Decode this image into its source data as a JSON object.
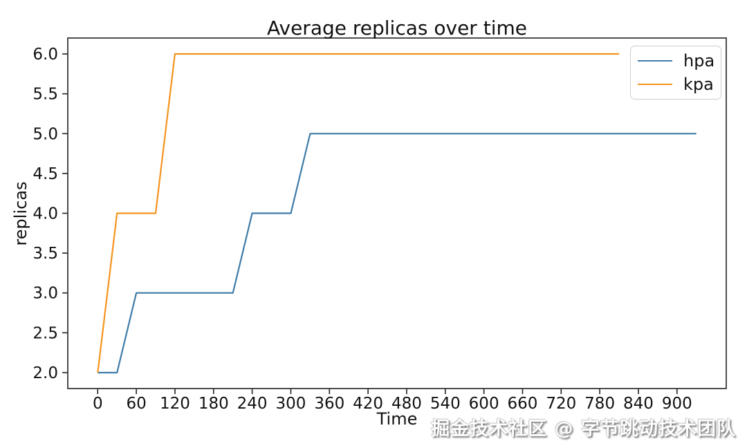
{
  "figure": {
    "background": "#ffffff"
  },
  "watermark": {
    "text": "掘金技术社区 @ 字节跳动技术团队",
    "color": "#fdfdfd",
    "shadow_color": "#6e6e6e"
  },
  "chart_data": {
    "type": "line",
    "title": "Average replicas over time",
    "xlabel": "Time",
    "ylabel": "replicas",
    "xlim": [
      -46.5,
      976.5
    ],
    "ylim": [
      1.8,
      6.2
    ],
    "grid": false,
    "legend_position": "upper right",
    "axis_color": "#2e2e2e",
    "tick_label_color": "#111111",
    "xticks": [
      0,
      60,
      120,
      180,
      240,
      300,
      360,
      420,
      480,
      540,
      600,
      660,
      720,
      780,
      840,
      900
    ],
    "xtick_labels": [
      "0",
      "60",
      "120",
      "180",
      "240",
      "300",
      "360",
      "420",
      "480",
      "540",
      "600",
      "660",
      "720",
      "780",
      "840",
      "900"
    ],
    "yticks": [
      2.0,
      2.5,
      3.0,
      3.5,
      4.0,
      4.5,
      5.0,
      5.5,
      6.0
    ],
    "ytick_labels": [
      "2.0",
      "2.5",
      "3.0",
      "3.5",
      "4.0",
      "4.5",
      "5.0",
      "5.5",
      "6.0"
    ],
    "series": [
      {
        "name": "hpa",
        "color": "#3d7ba6",
        "points": [
          [
            0,
            2
          ],
          [
            30,
            2
          ],
          [
            60,
            3
          ],
          [
            210,
            3
          ],
          [
            240,
            4
          ],
          [
            300,
            4
          ],
          [
            330,
            5
          ],
          [
            930,
            5
          ]
        ]
      },
      {
        "name": "kpa",
        "color": "#f5931e",
        "points": [
          [
            0,
            2
          ],
          [
            30,
            4
          ],
          [
            90,
            4
          ],
          [
            120,
            6
          ],
          [
            810,
            6
          ]
        ]
      }
    ]
  }
}
